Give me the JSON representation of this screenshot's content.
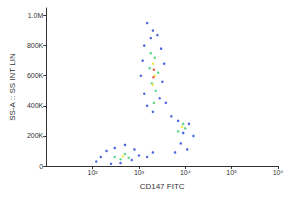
{
  "chart_data": {
    "type": "scatter",
    "x_label": "CD147 FITC",
    "y_label": "SS-A :: SS INT LIN",
    "log": "x",
    "grid": false,
    "xlim": [
      10,
      1000000
    ],
    "xticks": [
      {
        "value": 100,
        "label": "10²"
      },
      {
        "value": 1000,
        "label": "10³"
      },
      {
        "value": 10000,
        "label": "10⁴"
      },
      {
        "value": 100000,
        "label": "10⁵"
      },
      {
        "value": 1000000,
        "label": "10⁶"
      }
    ],
    "ylim": [
      0,
      1050000
    ],
    "yticks": [
      0,
      {
        "value": 200000,
        "label": "200K"
      },
      {
        "value": 400000,
        "label": "400K"
      },
      {
        "value": 600000,
        "label": "600K"
      },
      {
        "value": 800000,
        "label": "800K"
      },
      {
        "value": 1000000,
        "label": "1.0M"
      }
    ],
    "series": [
      {
        "color": "#1a3fd6",
        "values": [
          [
            1500,
            950000
          ],
          [
            2000,
            900000
          ],
          [
            1800,
            850000
          ],
          [
            2500,
            870000
          ],
          [
            1300,
            800000
          ],
          [
            3000,
            780000
          ],
          [
            1200,
            700000
          ],
          [
            3500,
            680000
          ],
          [
            1100,
            600000
          ],
          [
            3200,
            560000
          ],
          [
            1300,
            480000
          ],
          [
            2800,
            450000
          ],
          [
            1500,
            400000
          ],
          [
            3800,
            420000
          ],
          [
            2000,
            360000
          ],
          [
            5000,
            330000
          ],
          [
            7000,
            300000
          ],
          [
            12000,
            280000
          ],
          [
            9000,
            220000
          ],
          [
            15000,
            200000
          ],
          [
            8000,
            150000
          ],
          [
            11000,
            110000
          ],
          [
            6000,
            90000
          ],
          [
            150,
            60000
          ],
          [
            200,
            100000
          ],
          [
            300,
            120000
          ],
          [
            500,
            140000
          ],
          [
            800,
            110000
          ],
          [
            1000,
            70000
          ],
          [
            120,
            30000
          ],
          [
            400,
            20000
          ],
          [
            700,
            40000
          ],
          [
            1500,
            60000
          ],
          [
            2000,
            90000
          ],
          [
            250,
            15000
          ]
        ]
      },
      {
        "color": "#2fd06a",
        "values": [
          [
            1800,
            750000
          ],
          [
            2200,
            720000
          ],
          [
            1700,
            650000
          ],
          [
            2600,
            620000
          ],
          [
            1900,
            550000
          ],
          [
            2300,
            500000
          ],
          [
            2100,
            420000
          ],
          [
            9000,
            280000
          ],
          [
            10000,
            250000
          ],
          [
            7000,
            230000
          ],
          [
            300,
            60000
          ],
          [
            500,
            80000
          ],
          [
            400,
            45000
          ],
          [
            600,
            55000
          ]
        ]
      },
      {
        "color": "#f0e020",
        "values": [
          [
            2000,
            680000
          ],
          [
            2200,
            600000
          ],
          [
            2000,
            540000
          ],
          [
            8500,
            260000
          ],
          [
            450,
            65000
          ]
        ]
      },
      {
        "color": "#e83020",
        "values": [
          [
            2100,
            640000
          ],
          [
            2050,
            590000
          ]
        ]
      }
    ]
  }
}
